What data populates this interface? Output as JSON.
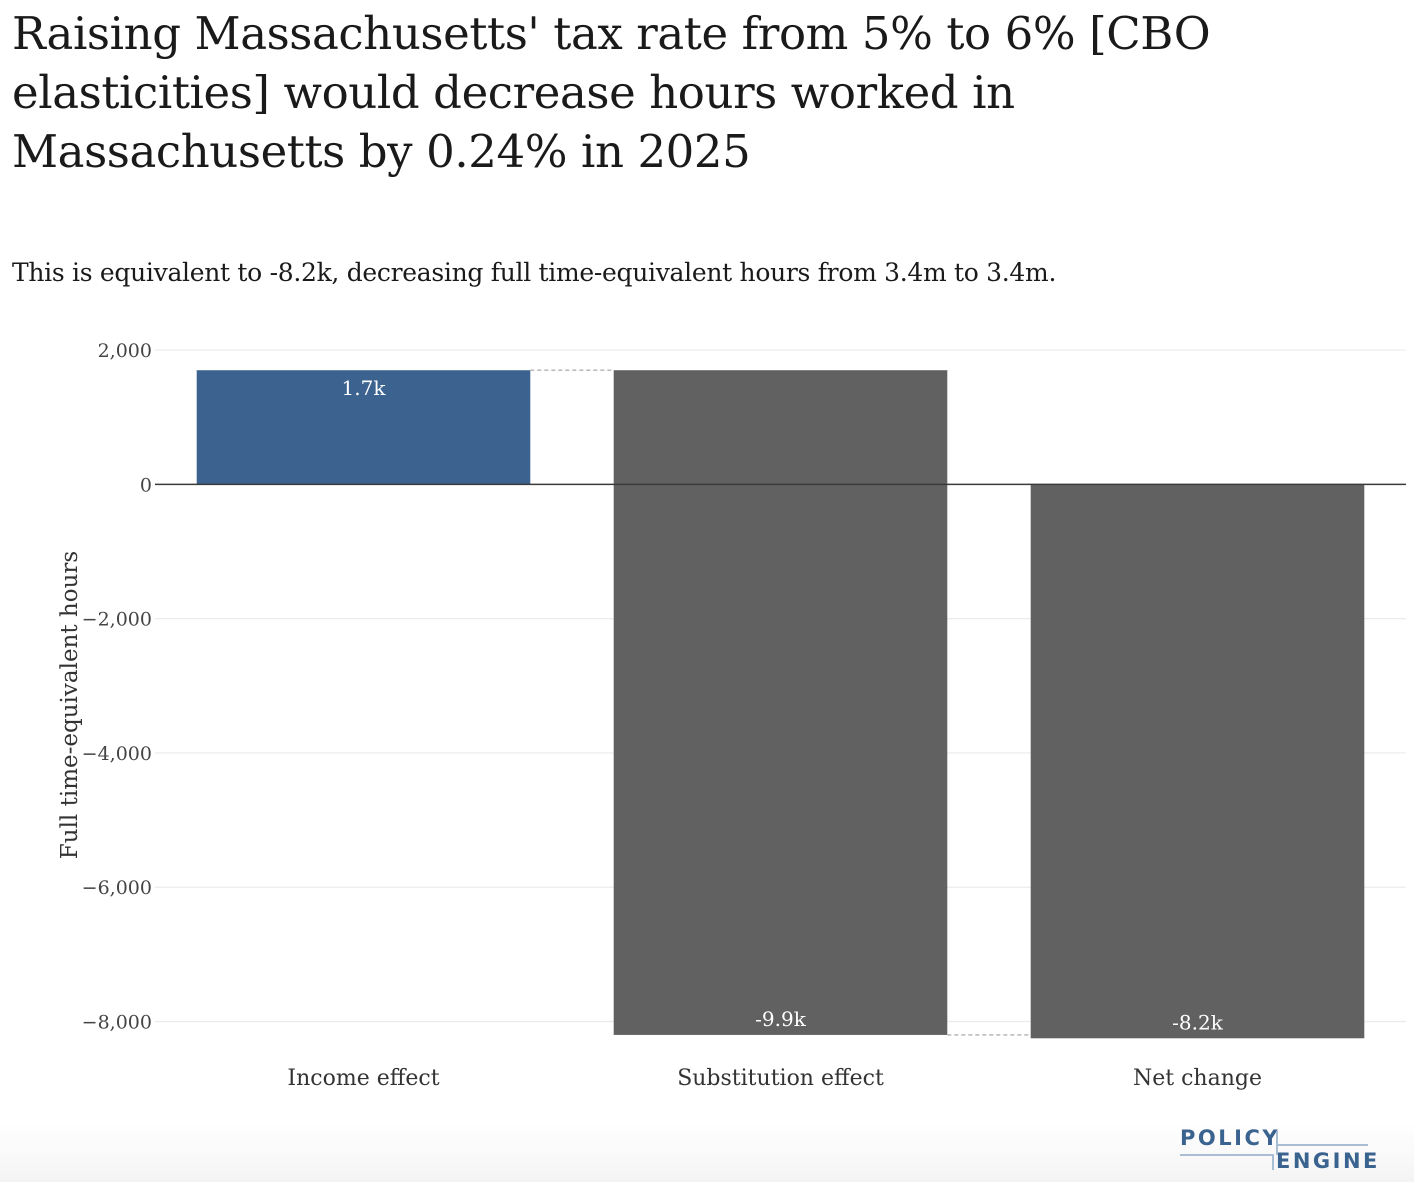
{
  "chart_data": {
    "type": "waterfall",
    "title": "Raising Massachusetts' tax rate from 5% to 6% [CBO elasticities] would decrease hours worked in Massachusetts by 0.24% in 2025",
    "subtitle": "This is equivalent to -8.2k, decreasing full time-equivalent hours from 3.4m to 3.4m.",
    "ylabel": "Full time-equivalent hours",
    "xlabel": "",
    "ylim": [
      -8350,
      2150
    ],
    "yticks": [
      2000,
      0,
      -2000,
      -4000,
      -6000,
      -8000
    ],
    "ytick_labels": [
      "2,000",
      "0",
      "−2,000",
      "−4,000",
      "−6,000",
      "−8,000"
    ],
    "grid": true,
    "categories": [
      "Income effect",
      "Substitution effect",
      "Net change"
    ],
    "bars": [
      {
        "category": "Income effect",
        "base": 0,
        "value": 1700,
        "label": "1.7k",
        "color": "#3c6390"
      },
      {
        "category": "Substitution effect",
        "base": 1700,
        "value": -9900,
        "label": "-9.9k",
        "color": "#616161"
      },
      {
        "category": "Net change",
        "base": 0,
        "value": -8250,
        "label": "-8.2k",
        "color": "#616161"
      }
    ],
    "colors": {
      "increase": "#3c6390",
      "decrease": "#616161",
      "gridline": "#ebebeb",
      "zero_line": "#3a3a3a",
      "connector": "#b0b0b0"
    }
  },
  "logo": {
    "top_word": "POLICY",
    "bottom_word": "ENGINE"
  }
}
